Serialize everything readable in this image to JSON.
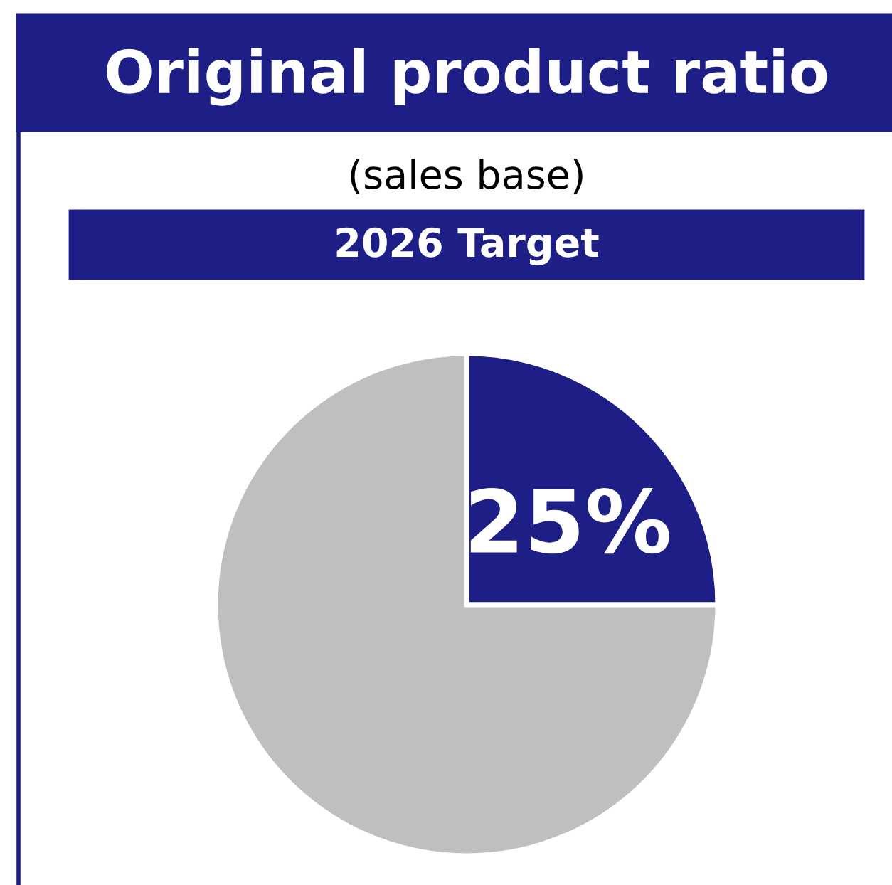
{
  "chart_data": {
    "type": "pie",
    "title": "Original product ratio",
    "subtitle": "(sales base)",
    "annotations": [
      "2026 Target"
    ],
    "categories": [
      null,
      null
    ],
    "values": [
      25,
      75
    ],
    "colors": [
      "#1e1e87",
      "#bfbfbf"
    ],
    "value_labels": [
      "25%",
      null
    ]
  }
}
